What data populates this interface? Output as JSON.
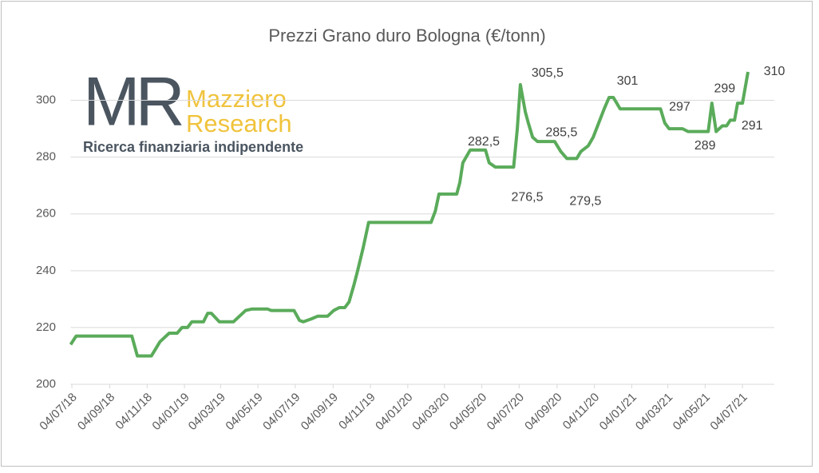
{
  "chart_data": {
    "type": "line",
    "title": "Prezzi Grano duro Bologna (€/tonn)",
    "logo": {
      "mark": "MR",
      "name_line1": "Mazziero",
      "name_line2": "Research",
      "tagline": "Ricerca finanziaria indipendente"
    },
    "x": [
      "02/07/18",
      "11/07/18",
      "10/10/18",
      "19/10/18",
      "11/11/18",
      "25/11/18",
      "10/12/18",
      "23/12/18",
      "31/12/18",
      "09/01/19",
      "16/01/19",
      "04/02/19",
      "11/02/19",
      "17/02/19",
      "02/03/19",
      "25/03/19",
      "04/04/19",
      "14/04/19",
      "24/04/19",
      "20/05/19",
      "26/05/19",
      "02/07/19",
      "11/07/19",
      "17/07/19",
      "30/07/19",
      "10/08/19",
      "26/08/19",
      "05/09/19",
      "14/09/19",
      "23/09/19",
      "30/09/19",
      "08/10/19",
      "14/10/19",
      "23/10/19",
      "01/11/19",
      "11/02/20",
      "18/02/20",
      "24/02/20",
      "24/03/20",
      "29/03/20",
      "03/04/20",
      "15/04/20",
      "10/05/20",
      "16/05/20",
      "26/05/20",
      "25/06/20",
      "01/07/20",
      "06/07/20",
      "14/07/20",
      "19/07/20",
      "26/07/20",
      "03/08/20",
      "31/08/20",
      "10/09/20",
      "20/09/20",
      "06/10/20",
      "13/10/20",
      "25/10/20",
      "02/11/20",
      "11/11/20",
      "20/11/20",
      "28/11/20",
      "05/12/20",
      "16/12/20",
      "20/02/21",
      "27/02/21",
      "06/03/21",
      "28/03/21",
      "06/04/21",
      "09/05/21",
      "15/05/21",
      "22/05/21",
      "01/06/21",
      "08/06/21",
      "14/06/21",
      "21/06/21",
      "26/06/21",
      "04/07/21",
      "13/07/21"
    ],
    "series": [
      {
        "name": "Grano duro",
        "color": "#5aab5a",
        "values": [
          214,
          217,
          217,
          210,
          210,
          215,
          218,
          218,
          220,
          220,
          222,
          222,
          225,
          225,
          222,
          222,
          224,
          226,
          226.5,
          226.5,
          226,
          226,
          222.5,
          222,
          223,
          224,
          224,
          226,
          227,
          227,
          229,
          235,
          240,
          248,
          257,
          257,
          261,
          267,
          267,
          271,
          278,
          282.5,
          282.5,
          278,
          276.5,
          276.5,
          290,
          305.5,
          296,
          292,
          287,
          285.5,
          285.5,
          282,
          279.5,
          279.5,
          282,
          284,
          287,
          292,
          297,
          301,
          301,
          297,
          297,
          292,
          290,
          290,
          289,
          289,
          299,
          289,
          291,
          291,
          293,
          293,
          299,
          299,
          310
        ],
        "value_labels": [
          null,
          null,
          null,
          null,
          null,
          null,
          null,
          null,
          null,
          null,
          null,
          null,
          null,
          null,
          null,
          null,
          null,
          null,
          null,
          null,
          null,
          null,
          null,
          null,
          null,
          null,
          null,
          null,
          null,
          null,
          null,
          null,
          null,
          null,
          null,
          null,
          null,
          null,
          null,
          null,
          null,
          "282,5",
          null,
          null,
          null,
          "276,5",
          null,
          "305,5",
          null,
          null,
          null,
          "285,5",
          null,
          null,
          null,
          "279,5",
          null,
          null,
          null,
          null,
          null,
          "301",
          null,
          null,
          "297",
          null,
          null,
          null,
          null,
          "289",
          "299",
          null,
          null,
          "291",
          null,
          null,
          null,
          null,
          "310"
        ]
      }
    ],
    "xlim": [
      "02/07/18",
      "25/08/21"
    ],
    "xticks": [
      "04/07/18",
      "04/09/18",
      "04/11/18",
      "04/01/19",
      "04/03/19",
      "04/05/19",
      "04/07/19",
      "04/09/19",
      "04/11/19",
      "04/01/20",
      "04/03/20",
      "04/05/20",
      "04/07/20",
      "04/09/20",
      "04/11/20",
      "04/01/21",
      "04/03/21",
      "04/05/21",
      "04/07/21"
    ],
    "ylim": [
      200,
      310
    ],
    "yticks": [
      200,
      220,
      240,
      260,
      280,
      300
    ],
    "grid": true
  }
}
